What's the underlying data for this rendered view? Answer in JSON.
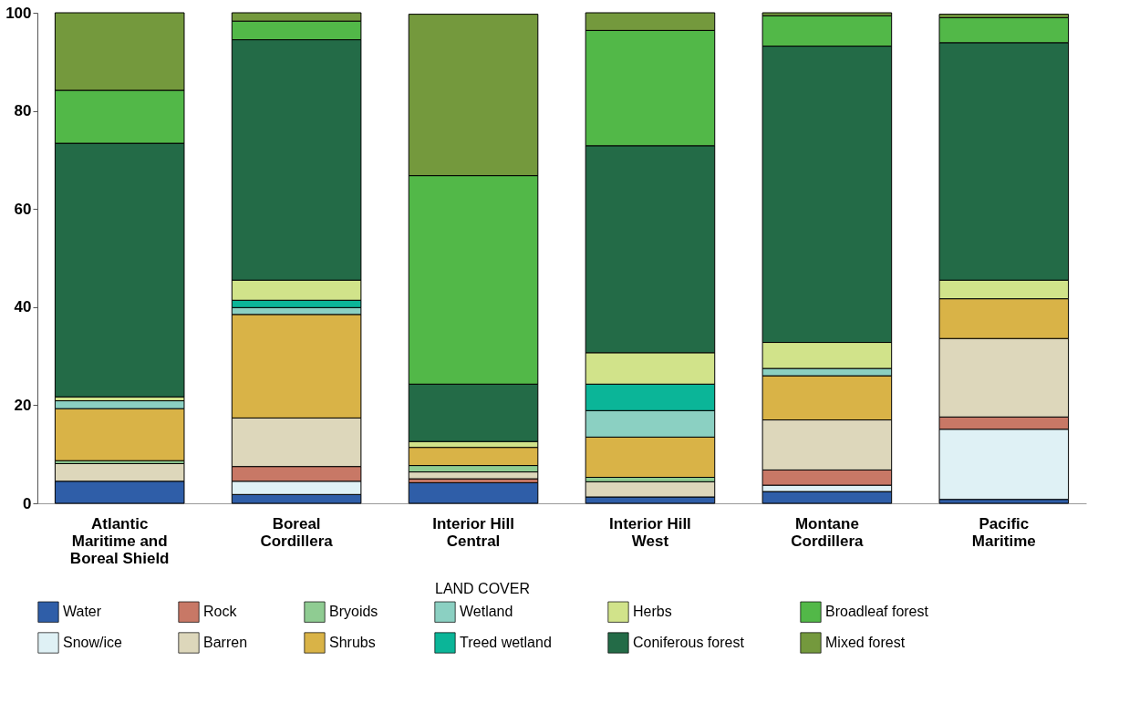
{
  "chart_data": {
    "type": "bar",
    "stacked": true,
    "categories": [
      "Atlantic Maritime and Boreal Shield",
      "Boreal Cordillera",
      "Interior Hill Central",
      "Interior Hill West",
      "Montane Cordillera",
      "Pacific Maritime"
    ],
    "series": [
      {
        "name": "Water",
        "color": "#2f5ea8",
        "values": [
          4.5,
          1.8,
          4.2,
          1.3,
          2.4,
          0.8
        ]
      },
      {
        "name": "Snow/ice",
        "color": "#dff1f5",
        "values": [
          null,
          2.7,
          null,
          null,
          1.3,
          14.3
        ]
      },
      {
        "name": "Rock",
        "color": "#c87866",
        "values": [
          null,
          3.0,
          0.8,
          null,
          3.1,
          2.5
        ]
      },
      {
        "name": "Barren",
        "color": "#ddd7bb",
        "values": [
          3.6,
          9.9,
          1.4,
          3.1,
          10.2,
          16.0
        ]
      },
      {
        "name": "Bryoids",
        "color": "#8fcc92",
        "values": [
          0.6,
          null,
          1.3,
          0.9,
          null,
          null
        ]
      },
      {
        "name": "Shrubs",
        "color": "#d9b347",
        "values": [
          10.6,
          21.1,
          3.7,
          8.2,
          9.0,
          8.1
        ]
      },
      {
        "name": "Wetland",
        "color": "#8bd0c2",
        "values": [
          1.6,
          1.4,
          null,
          5.4,
          1.5,
          null
        ]
      },
      {
        "name": "Treed wetland",
        "color": "#0bb598",
        "values": [
          null,
          1.5,
          null,
          5.4,
          null,
          null
        ]
      },
      {
        "name": "Herbs",
        "color": "#d1e38a",
        "values": [
          0.8,
          4.1,
          1.2,
          6.4,
          5.3,
          3.8
        ]
      },
      {
        "name": "Coniferous forest",
        "color": "#236b47",
        "values": [
          51.7,
          49.0,
          11.7,
          42.2,
          60.4,
          48.4
        ]
      },
      {
        "name": "Broadleaf forest",
        "color": "#52b848",
        "values": [
          10.8,
          3.8,
          42.5,
          23.5,
          6.2,
          5.1
        ]
      },
      {
        "name": "Mixed forest",
        "color": "#74993d",
        "values": [
          15.8,
          1.7,
          32.9,
          3.6,
          0.6,
          0.7
        ]
      }
    ],
    "legend_title": "LAND COVER",
    "legend": "bottom",
    "ylim": [
      0,
      100
    ],
    "yticks": [
      0,
      20,
      40,
      60,
      80,
      100
    ],
    "grid": false
  }
}
